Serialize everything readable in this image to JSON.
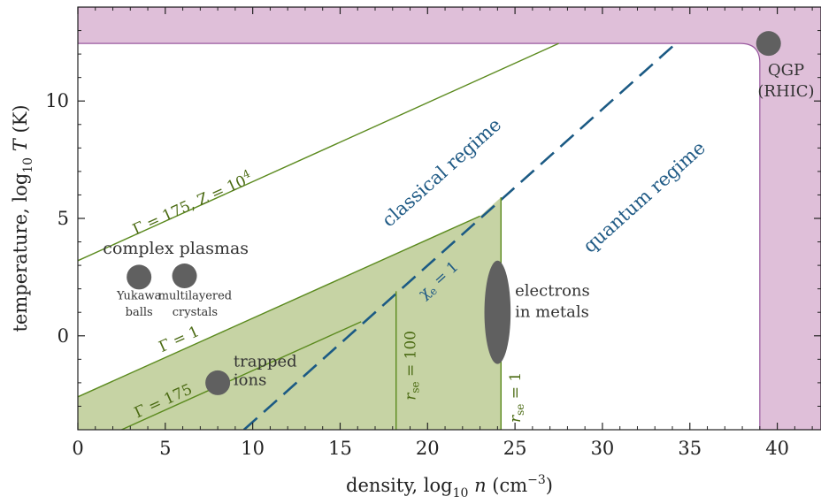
{
  "chart_data": {
    "type": "area",
    "xlabel": "density, log₁₀ n (cm⁻³)",
    "ylabel": "temperature, log₁₀ T (K)",
    "xlim": [
      0,
      42.5
    ],
    "ylim": [
      -4,
      14
    ],
    "x_ticks": [
      0,
      5,
      10,
      15,
      20,
      25,
      30,
      35,
      40
    ],
    "y_ticks": [
      0,
      5,
      10
    ],
    "grid": false,
    "colors": {
      "green_line": "#5b8a1e",
      "green_fill": "#c6d3a4",
      "blue_line": "#1b5a84",
      "qgp_fill": "#dfbfd9",
      "qgp_line": "#9a5aa0",
      "dot": "#606060"
    },
    "regions": {
      "strongly_coupled": {
        "polygon": [
          [
            0,
            -2.6
          ],
          [
            23,
            5.1
          ],
          [
            24.2,
            5.9
          ],
          [
            24.2,
            -4
          ],
          [
            0,
            -4
          ]
        ]
      },
      "qgp": {
        "y_min": 12.45,
        "x_min": 39
      }
    },
    "lines": [
      {
        "label": "Γ = 175, Z = 10⁴",
        "x": [
          0,
          27.5
        ],
        "y": [
          3.2,
          12.45
        ]
      },
      {
        "label": "Γ = 1",
        "x": [
          0,
          23
        ],
        "y": [
          -2.6,
          5.1
        ]
      },
      {
        "label": "Γ = 175",
        "x": [
          2.5,
          16.2
        ],
        "y": [
          -4,
          0.6
        ]
      },
      {
        "label": "χe = 1",
        "x": [
          9.5,
          34.2
        ],
        "y": [
          -4,
          12.45
        ]
      },
      {
        "label": "r_se = 100",
        "x": [
          18.2,
          18.2
        ],
        "y": [
          -4,
          1.9
        ]
      },
      {
        "label": "r_se = 1",
        "x": [
          24.2,
          24.2
        ],
        "y": [
          -4,
          5.9
        ]
      }
    ],
    "points": [
      {
        "label": "Yukawa balls",
        "x": 3.5,
        "y": 2.5
      },
      {
        "label": "multilayered crystals",
        "x": 6.1,
        "y": 2.55
      },
      {
        "label": "trapped ions",
        "x": 8,
        "y": -2
      },
      {
        "label": "QGP (RHIC)",
        "x": 39.5,
        "y": 12.45
      }
    ],
    "ellipse": {
      "label": "electrons in metals",
      "cx": 24,
      "cy": 1,
      "rx": 0.75,
      "ry": 2.2
    },
    "annotations": {
      "g175z": "Γ = 175, Z = 10⁴",
      "g1": "Γ = 1",
      "g175": "Γ = 175",
      "chi": "χe = 1",
      "rse100": "r_se = 100",
      "rse1": "r_se = 1",
      "complex_plasmas": "complex plasmas",
      "yukawa_1": "Yukawa",
      "yukawa_2": "balls",
      "ml_1": "multilayered",
      "ml_2": "crystals",
      "trapped_1": "trapped",
      "trapped_2": "ions",
      "electrons_1": "electrons",
      "electrons_2": "in metals",
      "qgp_1": "QGP",
      "qgp_2": "(RHIC)",
      "classical": "classical regime",
      "quantum": "quantum regime"
    }
  }
}
